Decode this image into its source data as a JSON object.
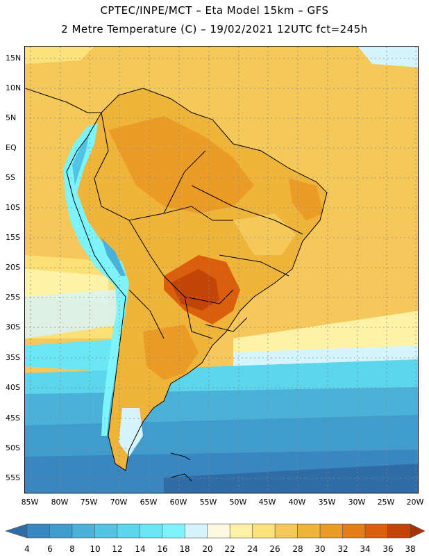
{
  "header": {
    "line1": "CPTEC/INPE/MCT  –   Eta Model 15km  –  GFS",
    "line2": "2 Metre Temperature (C)  –  19/02/2021  12UTC  fct=245h"
  },
  "map": {
    "lat_labels": [
      "15N",
      "10N",
      "5N",
      "EQ",
      "5S",
      "10S",
      "15S",
      "20S",
      "25S",
      "30S",
      "35S",
      "40S",
      "45S",
      "50S",
      "55S"
    ],
    "lon_labels": [
      "85W",
      "80W",
      "75W",
      "70W",
      "65W",
      "60W",
      "55W",
      "50W",
      "45W",
      "40W",
      "35W",
      "30W",
      "25W",
      "20W"
    ]
  },
  "colorbar": {
    "labels": [
      "4",
      "6",
      "8",
      "10",
      "12",
      "14",
      "16",
      "18",
      "20",
      "22",
      "24",
      "26",
      "28",
      "30",
      "32",
      "34",
      "36",
      "38"
    ],
    "colors": [
      "#2f6ca6",
      "#3a86c0",
      "#3f9ccd",
      "#4ab1d8",
      "#52c4e3",
      "#5bd6ec",
      "#6ae6f4",
      "#7df4fb",
      "#d6f4fb",
      "#fff8e0",
      "#fff2a6",
      "#fbe27a",
      "#f4c95a",
      "#efb43a",
      "#eb9c26",
      "#e57e16",
      "#db5e0c",
      "#c34406",
      "#a63208"
    ]
  }
}
